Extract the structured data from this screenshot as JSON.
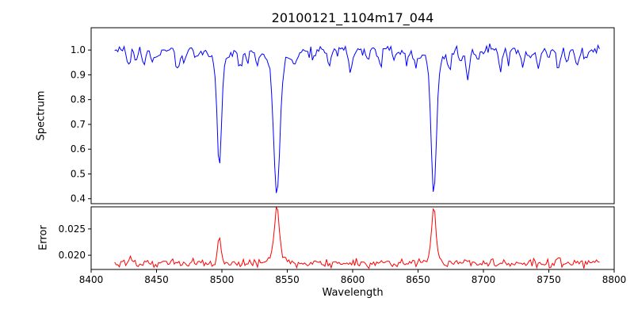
{
  "figure": {
    "title": "20100121_1104m17_044",
    "xlabel": "Wavelength",
    "ylabel_top": "Spectrum",
    "ylabel_bottom": "Error",
    "background": "#ffffff",
    "spine_color": "#000000",
    "text_color": "#000000"
  },
  "chart_data": {
    "type": "line",
    "title": "20100121_1104m17_044",
    "xlabel": "Wavelength",
    "grid": false,
    "legend": null,
    "xlim": [
      8400,
      8800
    ],
    "xticks": [
      8400,
      8450,
      8500,
      8550,
      8600,
      8650,
      8700,
      8750,
      8800
    ],
    "x_start": 8418,
    "x_end": 8790,
    "x_step": 1.2,
    "noise_seed": 44,
    "panels": [
      {
        "name": "spectrum",
        "ylabel": "Spectrum",
        "line_color": "#0000ff",
        "ylim": [
          0.38,
          1.09
        ],
        "yticks": [
          0.4,
          0.5,
          0.6,
          0.7,
          0.8,
          0.9,
          1.0
        ],
        "ytick_labels": [
          "0.4",
          "0.5",
          "0.6",
          "0.7",
          "0.8",
          "0.9",
          "1.0"
        ],
        "continuum": 1.0,
        "noise_sigma": 0.011,
        "absorption_lines": [
          {
            "center": 8498,
            "depth": 0.42,
            "width": 1.7
          },
          {
            "center": 8498,
            "depth": 0.05,
            "width": 6.0
          },
          {
            "center": 8542,
            "depth": 0.52,
            "width": 2.3
          },
          {
            "center": 8542,
            "depth": 0.06,
            "width": 8.0
          },
          {
            "center": 8662,
            "depth": 0.53,
            "width": 2.0
          },
          {
            "center": 8662,
            "depth": 0.05,
            "width": 7.0
          },
          {
            "center": 8429,
            "depth": 0.06,
            "width": 1.2
          },
          {
            "center": 8434,
            "depth": 0.04,
            "width": 1.0
          },
          {
            "center": 8440,
            "depth": 0.06,
            "width": 1.3
          },
          {
            "center": 8447,
            "depth": 0.05,
            "width": 1.2
          },
          {
            "center": 8452,
            "depth": 0.04,
            "width": 1.0
          },
          {
            "center": 8466,
            "depth": 0.08,
            "width": 1.4
          },
          {
            "center": 8471,
            "depth": 0.05,
            "width": 1.1
          },
          {
            "center": 8480,
            "depth": 0.04,
            "width": 1.0
          },
          {
            "center": 8514,
            "depth": 0.08,
            "width": 1.4
          },
          {
            "center": 8519,
            "depth": 0.05,
            "width": 1.1
          },
          {
            "center": 8527,
            "depth": 0.05,
            "width": 1.2
          },
          {
            "center": 8556,
            "depth": 0.05,
            "width": 1.2
          },
          {
            "center": 8570,
            "depth": 0.04,
            "width": 1.0
          },
          {
            "center": 8582,
            "depth": 0.06,
            "width": 1.2
          },
          {
            "center": 8598,
            "depth": 0.07,
            "width": 1.3
          },
          {
            "center": 8611,
            "depth": 0.05,
            "width": 1.1
          },
          {
            "center": 8621,
            "depth": 0.06,
            "width": 1.2
          },
          {
            "center": 8632,
            "depth": 0.04,
            "width": 1.0
          },
          {
            "center": 8642,
            "depth": 0.05,
            "width": 1.1
          },
          {
            "center": 8648,
            "depth": 0.06,
            "width": 1.2
          },
          {
            "center": 8674,
            "depth": 0.08,
            "width": 1.3
          },
          {
            "center": 8682,
            "depth": 0.05,
            "width": 1.1
          },
          {
            "center": 8688,
            "depth": 0.11,
            "width": 1.4
          },
          {
            "center": 8696,
            "depth": 0.05,
            "width": 1.1
          },
          {
            "center": 8713,
            "depth": 0.08,
            "width": 1.3
          },
          {
            "center": 8719,
            "depth": 0.05,
            "width": 1.1
          },
          {
            "center": 8730,
            "depth": 0.06,
            "width": 1.2
          },
          {
            "center": 8736,
            "depth": 0.04,
            "width": 1.0
          },
          {
            "center": 8742,
            "depth": 0.07,
            "width": 1.2
          },
          {
            "center": 8749,
            "depth": 0.04,
            "width": 1.0
          },
          {
            "center": 8757,
            "depth": 0.08,
            "width": 1.3
          },
          {
            "center": 8764,
            "depth": 0.05,
            "width": 1.1
          },
          {
            "center": 8772,
            "depth": 0.06,
            "width": 1.2
          },
          {
            "center": 8779,
            "depth": 0.04,
            "width": 1.0
          }
        ]
      },
      {
        "name": "error",
        "ylabel": "Error",
        "line_color": "#ff0000",
        "ylim": [
          0.0173,
          0.0292
        ],
        "yticks": [
          0.02,
          0.025
        ],
        "ytick_labels": [
          "0.020",
          "0.025"
        ],
        "baseline": 0.0185,
        "noise_sigma": 0.00035,
        "peaks": [
          {
            "center": 8430,
            "height": 0.0012,
            "width": 1.0
          },
          {
            "center": 8498,
            "height": 0.005,
            "width": 1.4
          },
          {
            "center": 8542,
            "height": 0.0095,
            "width": 1.8
          },
          {
            "center": 8542,
            "height": 0.0013,
            "width": 5.0
          },
          {
            "center": 8662,
            "height": 0.0095,
            "width": 1.6
          },
          {
            "center": 8662,
            "height": 0.0012,
            "width": 4.5
          },
          {
            "center": 8688,
            "height": 0.0008,
            "width": 1.2
          },
          {
            "center": 8713,
            "height": 0.0006,
            "width": 1.2
          },
          {
            "center": 8757,
            "height": 0.0007,
            "width": 1.2
          }
        ]
      }
    ]
  }
}
